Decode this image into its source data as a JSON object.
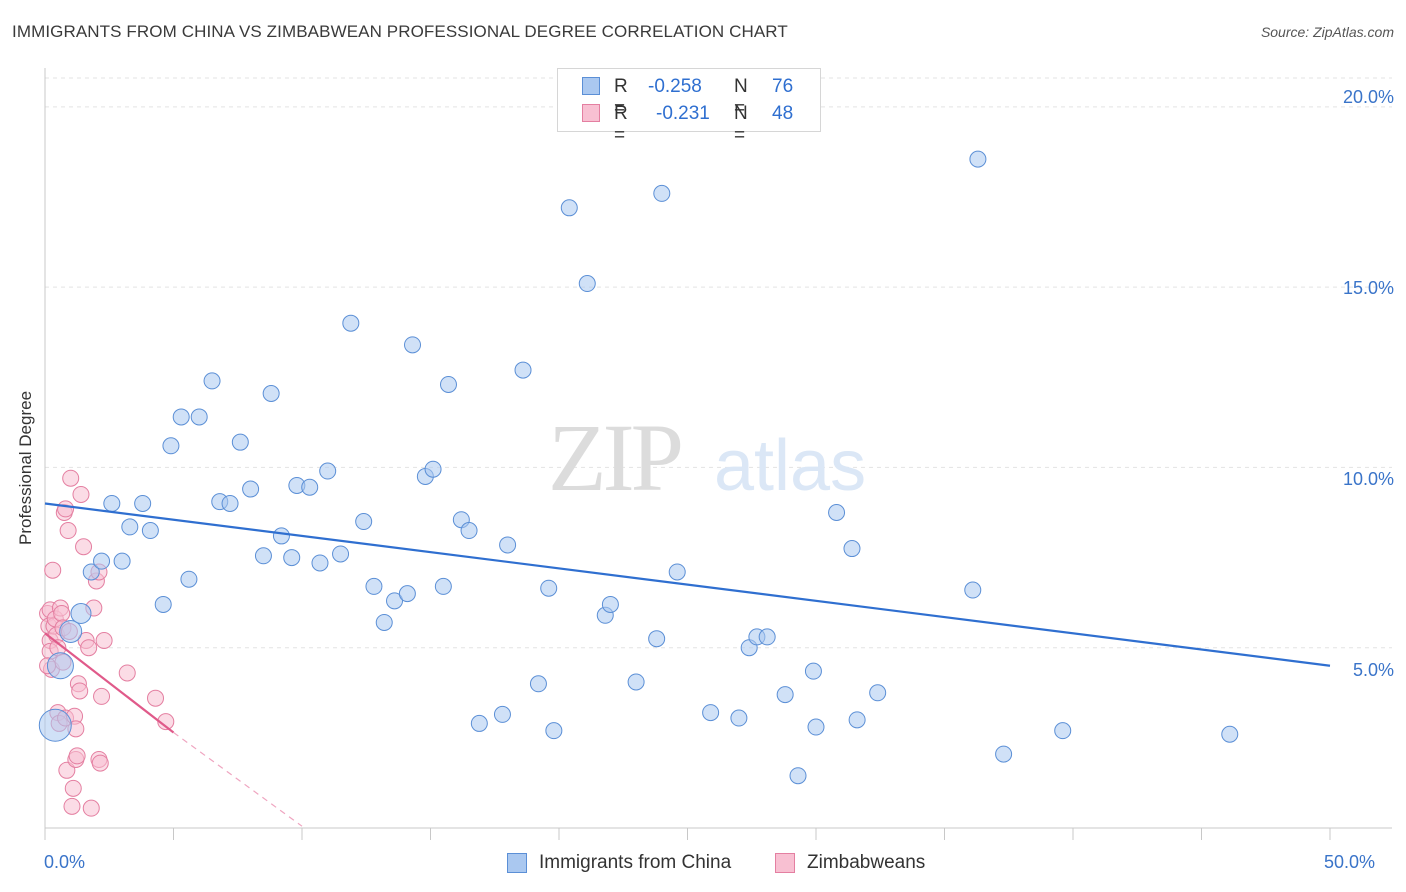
{
  "title": "IMMIGRANTS FROM CHINA VS ZIMBABWEAN PROFESSIONAL DEGREE CORRELATION CHART",
  "source": "Source: ZipAtlas.com",
  "watermark": {
    "zip": "ZIP",
    "atlas": "atlas"
  },
  "legend_top": [
    {
      "r_label": "R =",
      "r_value": "-0.258",
      "n_label": "N =",
      "n_value": "76",
      "color": "#aac8f0",
      "border": "#5b8fd6"
    },
    {
      "r_label": "R =",
      "r_value": "-0.231",
      "n_label": "N =",
      "n_value": "48",
      "color": "#f8c0d2",
      "border": "#e47fa1"
    }
  ],
  "legend_bottom": [
    {
      "label": "Immigrants from China",
      "color": "#aac8f0",
      "border": "#5b8fd6"
    },
    {
      "label": "Zimbabweans",
      "color": "#f8c0d2",
      "border": "#e47fa1"
    }
  ],
  "axis": {
    "ylabel": "Professional Degree",
    "y_ticks": [
      "20.0%",
      "15.0%",
      "10.0%",
      "5.0%"
    ],
    "x_ticks": [
      "0.0%",
      "50.0%"
    ]
  },
  "chart_data": {
    "type": "scatter",
    "title": "IMMIGRANTS FROM CHINA VS ZIMBABWEAN PROFESSIONAL DEGREE CORRELATION CHART",
    "xlabel": "",
    "ylabel": "Professional Degree",
    "xlim": [
      0,
      50
    ],
    "ylim": [
      0,
      20.8
    ],
    "y_tick_values": [
      5,
      10,
      15,
      20
    ],
    "x_tick_values": [
      0,
      50
    ],
    "grid": "horizontal dashed",
    "legend_placement": "top-center",
    "series": [
      {
        "name": "Immigrants from China",
        "color": "#aac8f0",
        "stroke": "#5b8fd6",
        "trend": {
          "x": [
            0,
            50
          ],
          "y": [
            9.0,
            4.5
          ],
          "color": "#2f6fd0"
        },
        "points": [
          {
            "x": 0.4,
            "y": 2.85,
            "r": 16
          },
          {
            "x": 0.6,
            "y": 4.5,
            "r": 13
          },
          {
            "x": 1.0,
            "y": 5.45,
            "r": 11
          },
          {
            "x": 1.4,
            "y": 5.95,
            "r": 10
          },
          {
            "x": 1.8,
            "y": 7.1
          },
          {
            "x": 2.2,
            "y": 7.4
          },
          {
            "x": 2.6,
            "y": 9.0
          },
          {
            "x": 3.0,
            "y": 7.4
          },
          {
            "x": 3.3,
            "y": 8.35
          },
          {
            "x": 3.8,
            "y": 9.0
          },
          {
            "x": 4.1,
            "y": 8.25
          },
          {
            "x": 4.6,
            "y": 6.2
          },
          {
            "x": 4.9,
            "y": 10.6
          },
          {
            "x": 5.3,
            "y": 11.4
          },
          {
            "x": 5.6,
            "y": 6.9
          },
          {
            "x": 6.0,
            "y": 11.4
          },
          {
            "x": 6.5,
            "y": 12.4
          },
          {
            "x": 6.8,
            "y": 9.05
          },
          {
            "x": 7.2,
            "y": 9.0
          },
          {
            "x": 7.6,
            "y": 10.7
          },
          {
            "x": 8.0,
            "y": 9.4
          },
          {
            "x": 8.5,
            "y": 7.55
          },
          {
            "x": 8.8,
            "y": 12.05
          },
          {
            "x": 9.2,
            "y": 8.1
          },
          {
            "x": 9.6,
            "y": 7.5
          },
          {
            "x": 9.8,
            "y": 9.5
          },
          {
            "x": 10.3,
            "y": 9.45
          },
          {
            "x": 10.7,
            "y": 7.35
          },
          {
            "x": 11.0,
            "y": 9.9
          },
          {
            "x": 11.5,
            "y": 7.6
          },
          {
            "x": 11.9,
            "y": 14.0
          },
          {
            "x": 12.4,
            "y": 8.5
          },
          {
            "x": 12.8,
            "y": 6.7
          },
          {
            "x": 13.2,
            "y": 5.7
          },
          {
            "x": 13.6,
            "y": 6.3
          },
          {
            "x": 14.1,
            "y": 6.5
          },
          {
            "x": 14.3,
            "y": 13.4
          },
          {
            "x": 14.8,
            "y": 9.75
          },
          {
            "x": 15.1,
            "y": 9.95
          },
          {
            "x": 15.5,
            "y": 6.7
          },
          {
            "x": 15.7,
            "y": 12.3
          },
          {
            "x": 16.2,
            "y": 8.55
          },
          {
            "x": 16.5,
            "y": 8.25
          },
          {
            "x": 16.9,
            "y": 2.9
          },
          {
            "x": 17.8,
            "y": 3.15
          },
          {
            "x": 18.0,
            "y": 7.85
          },
          {
            "x": 18.6,
            "y": 12.7
          },
          {
            "x": 19.2,
            "y": 4.0
          },
          {
            "x": 19.6,
            "y": 6.65
          },
          {
            "x": 19.8,
            "y": 2.7
          },
          {
            "x": 20.4,
            "y": 17.2
          },
          {
            "x": 21.1,
            "y": 15.1
          },
          {
            "x": 21.8,
            "y": 5.9
          },
          {
            "x": 22.0,
            "y": 6.2
          },
          {
            "x": 23.0,
            "y": 4.05
          },
          {
            "x": 23.8,
            "y": 5.25
          },
          {
            "x": 24.6,
            "y": 7.1
          },
          {
            "x": 24.0,
            "y": 17.6
          },
          {
            "x": 25.9,
            "y": 3.2
          },
          {
            "x": 27.0,
            "y": 3.05
          },
          {
            "x": 27.4,
            "y": 5.0
          },
          {
            "x": 27.7,
            "y": 5.3
          },
          {
            "x": 28.1,
            "y": 5.3
          },
          {
            "x": 28.8,
            "y": 3.7
          },
          {
            "x": 29.3,
            "y": 1.45
          },
          {
            "x": 29.9,
            "y": 4.35
          },
          {
            "x": 30.0,
            "y": 2.8
          },
          {
            "x": 30.8,
            "y": 8.75
          },
          {
            "x": 31.4,
            "y": 7.75
          },
          {
            "x": 31.6,
            "y": 3.0
          },
          {
            "x": 32.4,
            "y": 3.75
          },
          {
            "x": 36.1,
            "y": 6.6
          },
          {
            "x": 36.3,
            "y": 18.55
          },
          {
            "x": 37.3,
            "y": 2.05
          },
          {
            "x": 39.6,
            "y": 2.7
          },
          {
            "x": 46.1,
            "y": 2.6
          }
        ]
      },
      {
        "name": "Zimbabweans",
        "color": "#f8c0d2",
        "stroke": "#e47fa1",
        "trend": {
          "x": [
            0,
            5
          ],
          "y": [
            5.4,
            2.65
          ],
          "dashed_extension": {
            "x": [
              5,
              10
            ],
            "y": [
              2.65,
              0.05
            ]
          },
          "color": "#e05a8a"
        },
        "points": [
          {
            "x": 0.1,
            "y": 5.95
          },
          {
            "x": 0.15,
            "y": 5.6
          },
          {
            "x": 0.2,
            "y": 5.2
          },
          {
            "x": 0.2,
            "y": 4.9
          },
          {
            "x": 0.25,
            "y": 4.4
          },
          {
            "x": 0.2,
            "y": 6.05
          },
          {
            "x": 0.3,
            "y": 7.15
          },
          {
            "x": 0.35,
            "y": 5.6
          },
          {
            "x": 0.4,
            "y": 5.8
          },
          {
            "x": 0.45,
            "y": 5.35
          },
          {
            "x": 0.5,
            "y": 5.0
          },
          {
            "x": 0.5,
            "y": 3.2
          },
          {
            "x": 0.55,
            "y": 2.9
          },
          {
            "x": 0.6,
            "y": 6.1
          },
          {
            "x": 0.65,
            "y": 5.95
          },
          {
            "x": 0.7,
            "y": 5.55
          },
          {
            "x": 0.7,
            "y": 4.6
          },
          {
            "x": 0.75,
            "y": 8.75
          },
          {
            "x": 0.8,
            "y": 8.85
          },
          {
            "x": 0.8,
            "y": 3.05
          },
          {
            "x": 0.85,
            "y": 1.6
          },
          {
            "x": 0.9,
            "y": 8.25
          },
          {
            "x": 0.95,
            "y": 5.45
          },
          {
            "x": 1.0,
            "y": 9.7
          },
          {
            "x": 1.05,
            "y": 0.6
          },
          {
            "x": 1.1,
            "y": 1.1
          },
          {
            "x": 1.15,
            "y": 3.1
          },
          {
            "x": 1.2,
            "y": 2.75
          },
          {
            "x": 1.2,
            "y": 1.9
          },
          {
            "x": 1.25,
            "y": 2.0
          },
          {
            "x": 1.3,
            "y": 4.0
          },
          {
            "x": 1.35,
            "y": 3.8
          },
          {
            "x": 1.4,
            "y": 9.25
          },
          {
            "x": 1.5,
            "y": 7.8
          },
          {
            "x": 1.6,
            "y": 5.2
          },
          {
            "x": 1.7,
            "y": 5.0
          },
          {
            "x": 1.8,
            "y": 0.55
          },
          {
            "x": 1.9,
            "y": 6.1
          },
          {
            "x": 2.0,
            "y": 6.85
          },
          {
            "x": 2.1,
            "y": 7.1
          },
          {
            "x": 2.1,
            "y": 1.9
          },
          {
            "x": 2.15,
            "y": 1.8
          },
          {
            "x": 2.2,
            "y": 3.65
          },
          {
            "x": 2.3,
            "y": 5.2
          },
          {
            "x": 3.2,
            "y": 4.3
          },
          {
            "x": 4.3,
            "y": 3.6
          },
          {
            "x": 4.7,
            "y": 2.95
          },
          {
            "x": 0.1,
            "y": 4.5
          }
        ]
      }
    ]
  }
}
